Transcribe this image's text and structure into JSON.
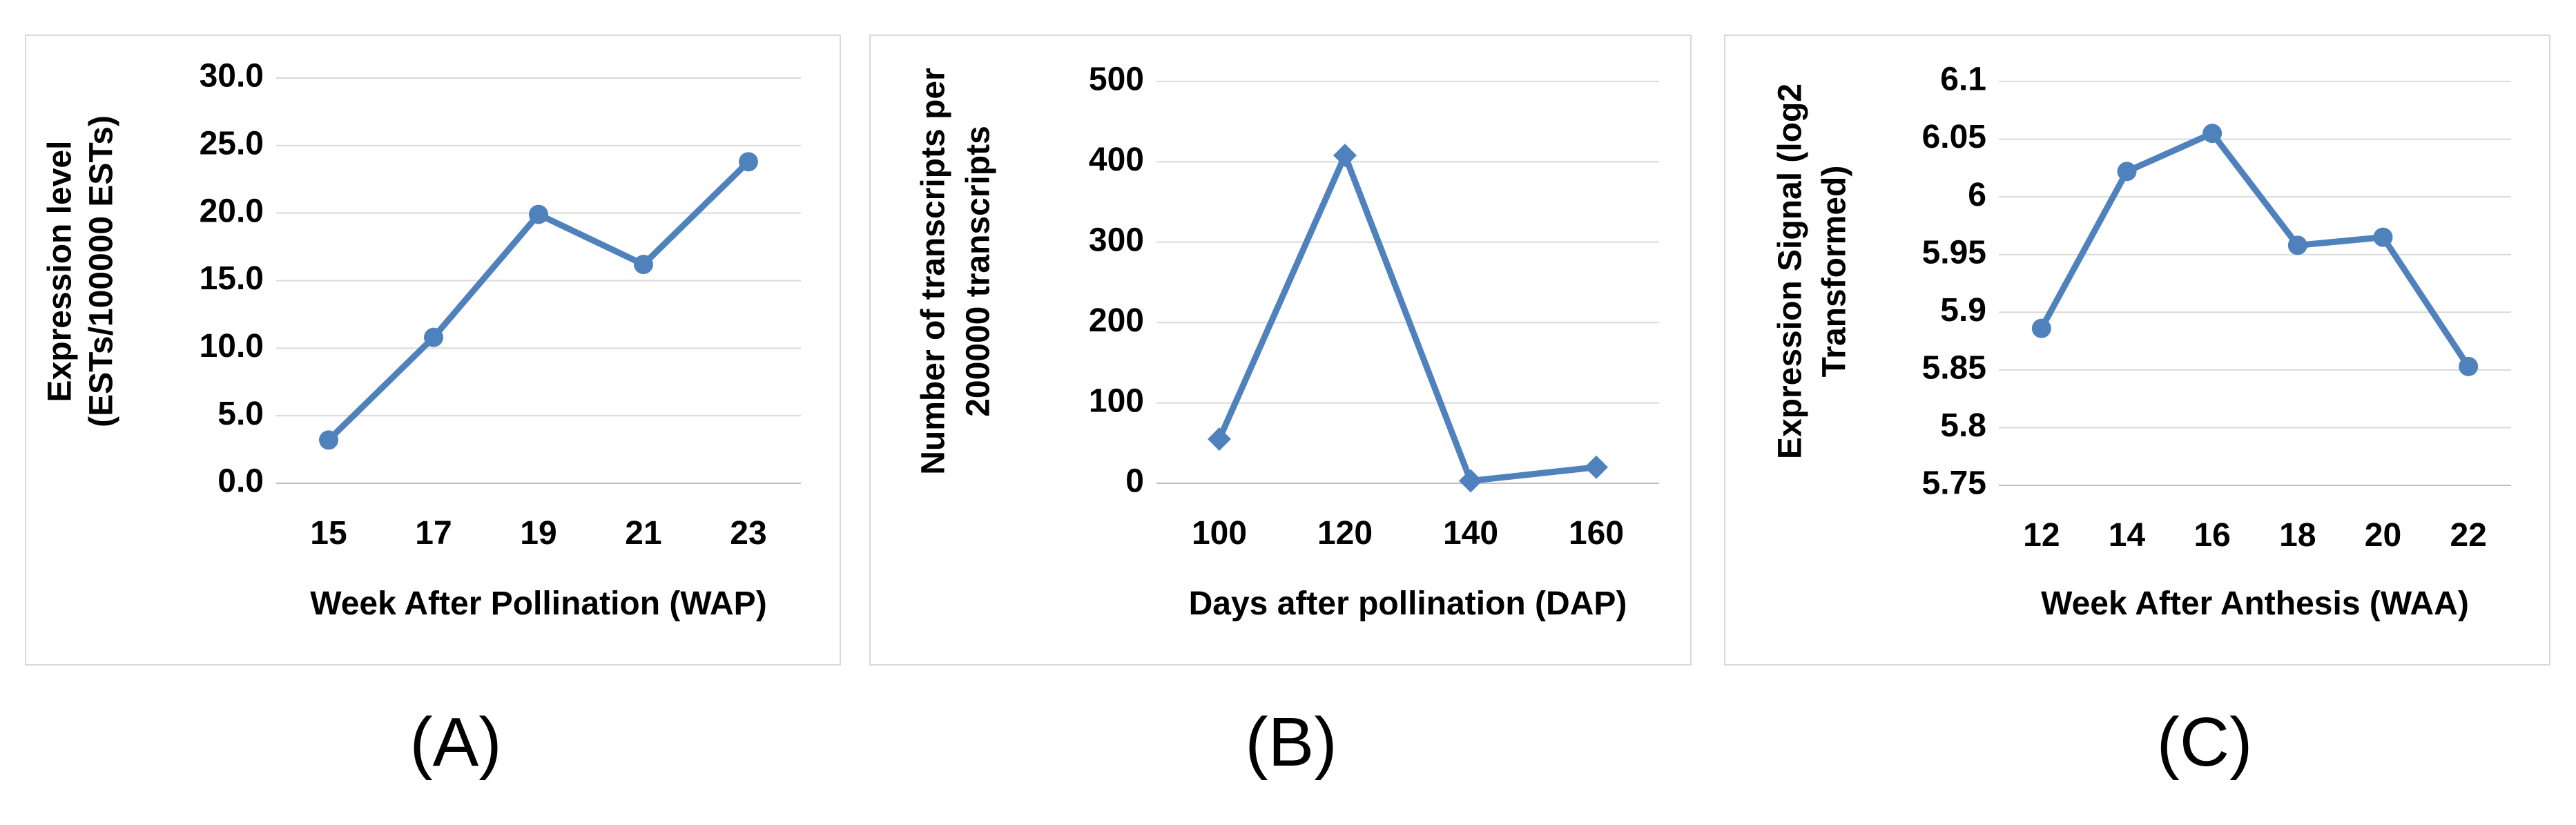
{
  "panel_labels": [
    "(A)",
    "(B)",
    "(C)"
  ],
  "series_color": "#4f81bd",
  "grid_color": "#d9d9d9",
  "chart_data": [
    {
      "type": "line",
      "marker": "circle",
      "title": "",
      "x": [
        "15",
        "17",
        "19",
        "21",
        "23"
      ],
      "values": [
        3.2,
        10.8,
        19.9,
        16.2,
        23.8
      ],
      "xlabel": "Week After Pollination (WAP)",
      "ylabel": [
        "Expression level",
        "(ESTs/100000 ESTs)"
      ],
      "ylim": [
        0,
        30
      ],
      "yticks": [
        "0.0",
        "5.0",
        "10.0",
        "15.0",
        "20.0",
        "25.0",
        "30.0"
      ],
      "grid": true,
      "legend": "none"
    },
    {
      "type": "line",
      "marker": "diamond",
      "title": "",
      "x": [
        "100",
        "120",
        "140",
        "160"
      ],
      "values": [
        55,
        408,
        3,
        20
      ],
      "xlabel": "Days after pollination (DAP)",
      "ylabel": [
        "Number of transcripts per",
        "200000 transcripts"
      ],
      "ylim": [
        0,
        500
      ],
      "yticks": [
        "0",
        "100",
        "200",
        "300",
        "400",
        "500"
      ],
      "grid": true,
      "legend": "none"
    },
    {
      "type": "line",
      "marker": "circle",
      "title": "",
      "x": [
        "12",
        "14",
        "16",
        "18",
        "20",
        "22"
      ],
      "values": [
        5.886,
        6.022,
        6.055,
        5.958,
        5.965,
        5.853
      ],
      "xlabel": "Week After Anthesis (WAA)",
      "ylabel": [
        "Expression Signal (log2",
        "Transformed)"
      ],
      "ylim": [
        5.75,
        6.1
      ],
      "yticks": [
        "5.75",
        "5.8",
        "5.85",
        "5.9",
        "5.95",
        "6",
        "6.05",
        "6.1"
      ],
      "grid": true,
      "legend": "none"
    }
  ]
}
